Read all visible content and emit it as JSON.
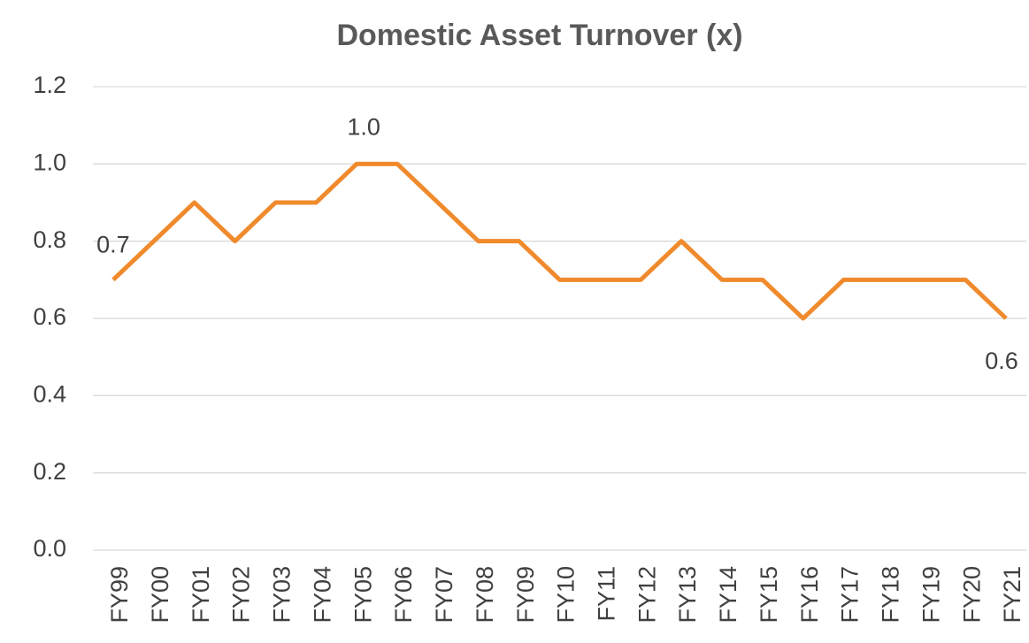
{
  "chart_data": {
    "type": "line",
    "title": "Domestic Asset Turnover (x)",
    "categories": [
      "FY99",
      "FY00",
      "FY01",
      "FY02",
      "FY03",
      "FY04",
      "FY05",
      "FY06",
      "FY07",
      "FY08",
      "FY09",
      "FY10",
      "FY11",
      "FY12",
      "FY13",
      "FY14",
      "FY15",
      "FY16",
      "FY17",
      "FY18",
      "FY19",
      "FY20",
      "FY21"
    ],
    "values": [
      0.7,
      0.8,
      0.9,
      0.8,
      0.9,
      0.9,
      1.0,
      1.0,
      0.9,
      0.8,
      0.8,
      0.7,
      0.7,
      0.7,
      0.8,
      0.7,
      0.7,
      0.6,
      0.7,
      0.7,
      0.7,
      0.7,
      0.6
    ],
    "value_labels": [
      "0.7",
      null,
      null,
      null,
      null,
      null,
      "1.0",
      null,
      null,
      null,
      null,
      null,
      null,
      null,
      null,
      null,
      null,
      null,
      null,
      null,
      null,
      null,
      "0.6"
    ],
    "color": "#f08a2c",
    "ylim": [
      0,
      1.2
    ],
    "yticks": [
      {
        "value": 0,
        "label": "0.0"
      },
      0.2,
      0.4,
      0.6,
      0.8,
      {
        "value": 1,
        "label": "1.0"
      },
      1.2
    ],
    "grid": true
  }
}
